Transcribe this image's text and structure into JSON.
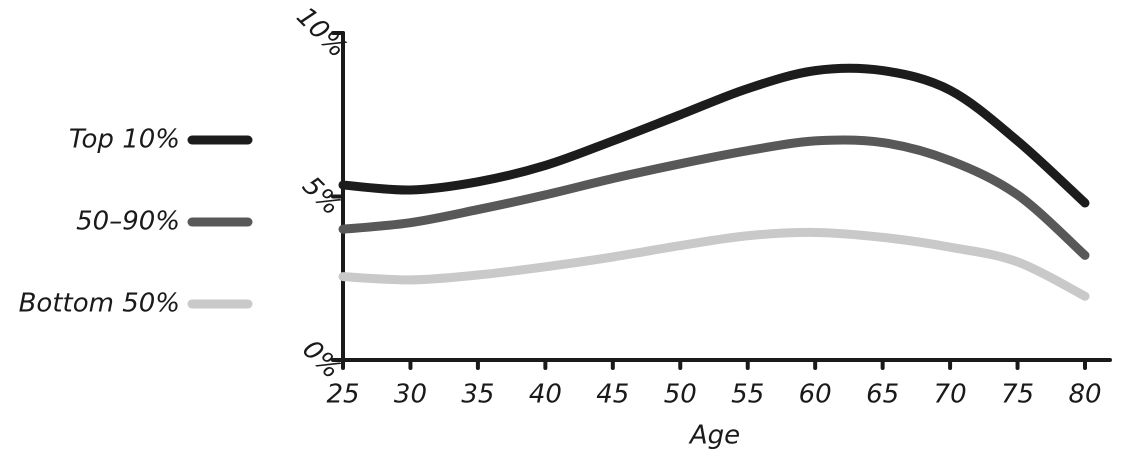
{
  "chart_data": {
    "type": "line",
    "xlabel": "Age",
    "x": [
      25,
      30,
      35,
      40,
      45,
      50,
      55,
      60,
      65,
      70,
      75,
      80
    ],
    "xlim": [
      25,
      80
    ],
    "xticks": [
      25,
      30,
      35,
      40,
      45,
      50,
      55,
      60,
      65,
      70,
      75,
      80
    ],
    "ylim": [
      0,
      10
    ],
    "yticks": [
      {
        "value": 0,
        "label": "0%"
      },
      {
        "value": 5,
        "label": "5%"
      },
      {
        "value": 10,
        "label": "10%"
      }
    ],
    "legend": "left",
    "series": [
      {
        "name": "Top 10%",
        "color": "#1c1c1c",
        "values": [
          5.35,
          5.2,
          5.45,
          5.95,
          6.7,
          7.5,
          8.3,
          8.85,
          8.85,
          8.25,
          6.7,
          4.8
        ]
      },
      {
        "name": "50–90%",
        "color": "#585858",
        "values": [
          4.0,
          4.2,
          4.6,
          5.05,
          5.55,
          6.0,
          6.4,
          6.7,
          6.65,
          6.1,
          5.05,
          3.2
        ]
      },
      {
        "name": "Bottom 50%",
        "color": "#c9c9c9",
        "values": [
          2.55,
          2.45,
          2.6,
          2.85,
          3.15,
          3.5,
          3.8,
          3.9,
          3.75,
          3.45,
          3.0,
          1.95
        ]
      }
    ]
  }
}
